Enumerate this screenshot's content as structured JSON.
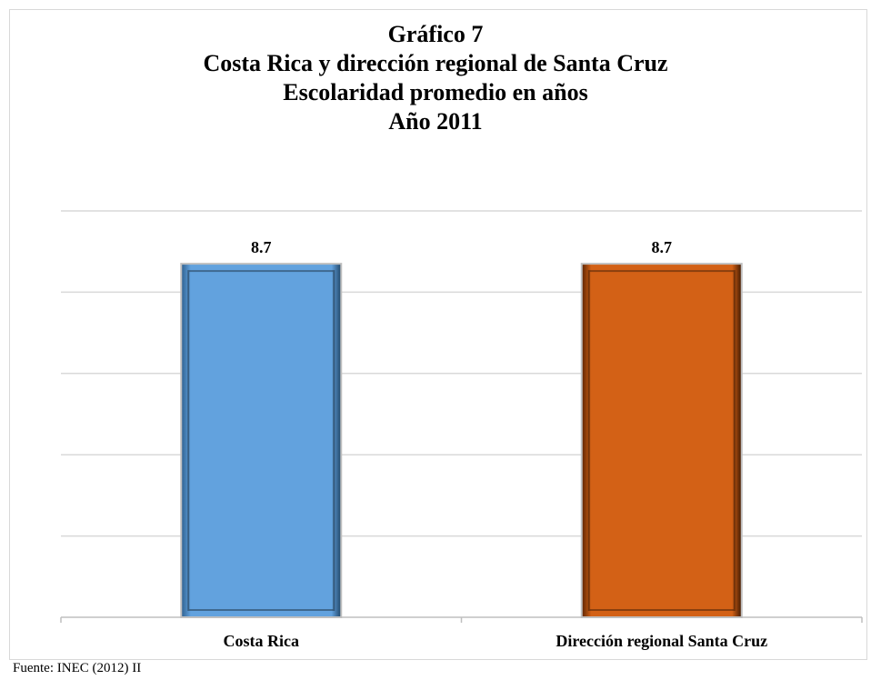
{
  "title_lines": [
    "Gráfico 7",
    "Costa Rica y dirección regional de Santa Cruz",
    "Escolaridad promedio en años",
    "Año 2011"
  ],
  "source": "Fuente: INEC (2012) II",
  "colors": {
    "gridline": "#d9d9d9",
    "axis": "#bfbfbf",
    "series_costa_rica": "#62a2de",
    "series_santa_cruz": "#d36116"
  },
  "chart_data": {
    "type": "bar",
    "categories": [
      "Costa Rica",
      "Dirección regional Santa Cruz"
    ],
    "values": [
      8.7,
      8.7
    ],
    "data_labels": [
      "8.7",
      "8.7"
    ],
    "title": "Gráfico 7 Costa Rica y dirección regional de Santa Cruz Escolaridad promedio en años Año 2011",
    "xlabel": "",
    "ylabel": "",
    "ylim": [
      0,
      10
    ],
    "grid": true,
    "legend": "none",
    "y_tick_labels_visible": false
  }
}
